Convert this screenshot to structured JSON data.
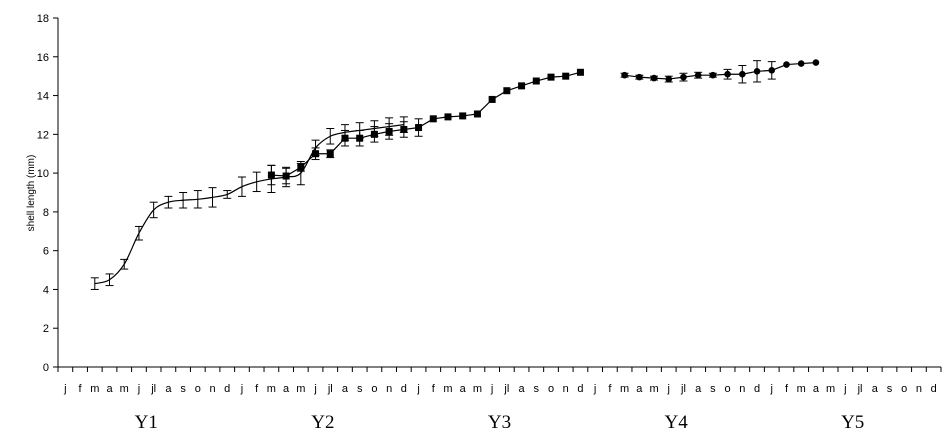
{
  "chart_data": {
    "type": "line",
    "xlabel": "",
    "ylabel": "shell length (mm)",
    "ylim": [
      0,
      18
    ],
    "yticks": [
      "0",
      "2",
      "4",
      "6",
      "8",
      "10",
      "12",
      "14",
      "16",
      "18"
    ],
    "month_labels": [
      "j",
      "f",
      "m",
      "a",
      "m",
      "j",
      "jl",
      "a",
      "s",
      "o",
      "n",
      "d"
    ],
    "year_labels": [
      "Y1",
      "Y2",
      "Y3",
      "Y4",
      "Y5"
    ],
    "grid": false,
    "series": [
      {
        "marker": "none",
        "error_bars": true,
        "points": [
          {
            "x": 3,
            "y": 4.3,
            "err": 0.3
          },
          {
            "x": 4,
            "y": 4.5,
            "err": 0.3
          },
          {
            "x": 5,
            "y": 5.3,
            "err": 0.25
          },
          {
            "x": 6,
            "y": 6.9,
            "err": 0.35
          },
          {
            "x": 7,
            "y": 8.1,
            "err": 0.4
          },
          {
            "x": 8,
            "y": 8.5,
            "err": 0.3
          },
          {
            "x": 9,
            "y": 8.6,
            "err": 0.4
          },
          {
            "x": 10,
            "y": 8.65,
            "err": 0.45
          },
          {
            "x": 11,
            "y": 8.75,
            "err": 0.5
          },
          {
            "x": 12,
            "y": 8.9,
            "err": 0.2
          },
          {
            "x": 13,
            "y": 9.3,
            "err": 0.5
          },
          {
            "x": 14,
            "y": 9.55,
            "err": 0.5
          },
          {
            "x": 15,
            "y": 9.7,
            "err": 0.7
          },
          {
            "x": 16,
            "y": 9.8,
            "err": 0.5
          },
          {
            "x": 17,
            "y": 10.0,
            "err": 0.6
          },
          {
            "x": 18,
            "y": 11.3,
            "err": 0.4
          },
          {
            "x": 19,
            "y": 11.9,
            "err": 0.4
          },
          {
            "x": 20,
            "y": 12.1,
            "err": 0.4
          },
          {
            "x": 21,
            "y": 12.2,
            "err": 0.4
          },
          {
            "x": 22,
            "y": 12.3,
            "err": 0.4
          },
          {
            "x": 23,
            "y": 12.4,
            "err": 0.45
          },
          {
            "x": 24,
            "y": 12.5,
            "err": 0.4
          }
        ]
      },
      {
        "marker": "square",
        "error_bars": true,
        "points": [
          {
            "x": 15,
            "y": 9.9,
            "err": 0.5
          },
          {
            "x": 16,
            "y": 9.85,
            "err": 0.4
          },
          {
            "x": 17,
            "y": 10.3,
            "err": 0.2
          },
          {
            "x": 18,
            "y": 11.0,
            "err": 0.3
          },
          {
            "x": 19,
            "y": 11.0,
            "err": 0.2
          },
          {
            "x": 20,
            "y": 11.8,
            "err": 0.4
          },
          {
            "x": 21,
            "y": 11.8,
            "err": 0.4
          },
          {
            "x": 22,
            "y": 12.0,
            "err": 0.4
          },
          {
            "x": 23,
            "y": 12.15,
            "err": 0.4
          },
          {
            "x": 24,
            "y": 12.25,
            "err": 0.4
          },
          {
            "x": 25,
            "y": 12.35,
            "err": 0.45
          },
          {
            "x": 26,
            "y": 12.8,
            "err": 0
          },
          {
            "x": 27,
            "y": 12.9,
            "err": 0
          },
          {
            "x": 28,
            "y": 12.95,
            "err": 0
          },
          {
            "x": 29,
            "y": 13.05,
            "err": 0
          },
          {
            "x": 30,
            "y": 13.8,
            "err": 0
          },
          {
            "x": 31,
            "y": 14.25,
            "err": 0
          },
          {
            "x": 32,
            "y": 14.5,
            "err": 0
          },
          {
            "x": 33,
            "y": 14.75,
            "err": 0
          },
          {
            "x": 34,
            "y": 14.95,
            "err": 0
          },
          {
            "x": 35,
            "y": 15.0,
            "err": 0
          },
          {
            "x": 36,
            "y": 15.2,
            "err": 0
          }
        ]
      },
      {
        "marker": "circle",
        "error_bars": true,
        "points": [
          {
            "x": 39,
            "y": 15.05,
            "err": 0.1
          },
          {
            "x": 40,
            "y": 14.95,
            "err": 0.1
          },
          {
            "x": 41,
            "y": 14.9,
            "err": 0.1
          },
          {
            "x": 42,
            "y": 14.85,
            "err": 0.15
          },
          {
            "x": 43,
            "y": 14.95,
            "err": 0.2
          },
          {
            "x": 44,
            "y": 15.05,
            "err": 0.15
          },
          {
            "x": 45,
            "y": 15.05,
            "err": 0.1
          },
          {
            "x": 46,
            "y": 15.1,
            "err": 0.25
          },
          {
            "x": 47,
            "y": 15.1,
            "err": 0.45
          },
          {
            "x": 48,
            "y": 15.25,
            "err": 0.55
          },
          {
            "x": 49,
            "y": 15.3,
            "err": 0.45
          },
          {
            "x": 50,
            "y": 15.6,
            "err": 0
          },
          {
            "x": 51,
            "y": 15.65,
            "err": 0
          },
          {
            "x": 52,
            "y": 15.7,
            "err": 0
          }
        ]
      }
    ]
  }
}
